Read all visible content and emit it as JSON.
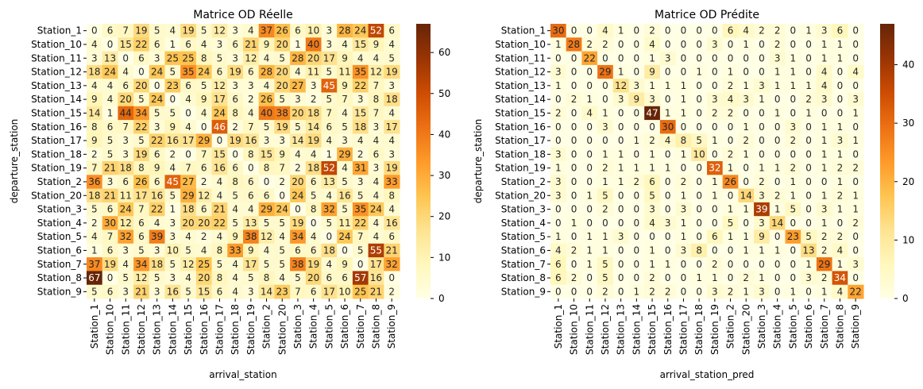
{
  "chart_data": [
    {
      "type": "heatmap",
      "title": "Matrice OD Réelle",
      "xlabel": "arrival_station",
      "ylabel": "departure_station",
      "rows": [
        "Station_1",
        "Station_10",
        "Station_11",
        "Station_12",
        "Station_13",
        "Station_14",
        "Station_15",
        "Station_16",
        "Station_17",
        "Station_18",
        "Station_19",
        "Station_2",
        "Station_20",
        "Station_3",
        "Station_4",
        "Station_5",
        "Station_6",
        "Station_7",
        "Station_8",
        "Station_9"
      ],
      "cols": [
        "Station_1",
        "Station_10",
        "Station_11",
        "Station_12",
        "Station_13",
        "Station_14",
        "Station_15",
        "Station_16",
        "Station_17",
        "Station_18",
        "Station_19",
        "Station_2",
        "Station_20",
        "Station_3",
        "Station_4",
        "Station_5",
        "Station_6",
        "Station_7",
        "Station_8",
        "Station_9"
      ],
      "values": [
        [
          0,
          6,
          7,
          19,
          5,
          4,
          19,
          5,
          12,
          3,
          4,
          37,
          26,
          6,
          10,
          3,
          28,
          24,
          52,
          6
        ],
        [
          4,
          0,
          15,
          22,
          6,
          1,
          6,
          4,
          3,
          6,
          21,
          9,
          20,
          1,
          40,
          3,
          4,
          15,
          9,
          4
        ],
        [
          3,
          13,
          0,
          6,
          3,
          25,
          25,
          8,
          5,
          3,
          12,
          4,
          5,
          28,
          20,
          17,
          9,
          4,
          4,
          5
        ],
        [
          18,
          24,
          4,
          0,
          24,
          5,
          35,
          24,
          6,
          19,
          6,
          28,
          20,
          4,
          11,
          5,
          11,
          35,
          12,
          19
        ],
        [
          4,
          4,
          6,
          20,
          0,
          23,
          6,
          5,
          12,
          3,
          3,
          4,
          20,
          27,
          3,
          45,
          9,
          22,
          7,
          3
        ],
        [
          9,
          4,
          20,
          5,
          24,
          0,
          4,
          9,
          17,
          6,
          2,
          26,
          5,
          3,
          2,
          5,
          7,
          3,
          8,
          18
        ],
        [
          14,
          1,
          44,
          34,
          5,
          5,
          0,
          4,
          24,
          8,
          4,
          40,
          38,
          20,
          18,
          7,
          4,
          15,
          7,
          4
        ],
        [
          8,
          6,
          7,
          22,
          3,
          9,
          4,
          0,
          46,
          2,
          7,
          5,
          19,
          5,
          14,
          6,
          5,
          18,
          3,
          17
        ],
        [
          9,
          5,
          3,
          5,
          22,
          16,
          17,
          29,
          0,
          19,
          16,
          3,
          3,
          14,
          19,
          4,
          3,
          4,
          4,
          4
        ],
        [
          2,
          5,
          3,
          19,
          6,
          2,
          0,
          7,
          15,
          0,
          8,
          15,
          9,
          4,
          4,
          1,
          29,
          2,
          6,
          3
        ],
        [
          7,
          21,
          18,
          8,
          9,
          4,
          7,
          6,
          16,
          6,
          0,
          8,
          7,
          2,
          18,
          52,
          4,
          31,
          3,
          19
        ],
        [
          36,
          3,
          6,
          26,
          6,
          45,
          27,
          2,
          4,
          8,
          6,
          0,
          2,
          20,
          6,
          13,
          5,
          3,
          4,
          33
        ],
        [
          18,
          21,
          11,
          17,
          16,
          5,
          29,
          12,
          4,
          5,
          6,
          6,
          0,
          24,
          5,
          4,
          16,
          5,
          4,
          8
        ],
        [
          5,
          6,
          24,
          7,
          22,
          1,
          18,
          6,
          21,
          4,
          4,
          29,
          24,
          0,
          8,
          32,
          5,
          35,
          24,
          4
        ],
        [
          2,
          30,
          12,
          6,
          4,
          3,
          20,
          20,
          22,
          5,
          13,
          5,
          5,
          19,
          0,
          5,
          11,
          22,
          4,
          16
        ],
        [
          4,
          7,
          32,
          6,
          39,
          3,
          4,
          2,
          4,
          9,
          38,
          12,
          4,
          34,
          4,
          0,
          24,
          7,
          4,
          6
        ],
        [
          1,
          6,
          3,
          5,
          3,
          10,
          5,
          4,
          8,
          33,
          9,
          4,
          5,
          6,
          6,
          18,
          0,
          5,
          55,
          21
        ],
        [
          37,
          19,
          4,
          34,
          18,
          5,
          12,
          25,
          5,
          4,
          17,
          5,
          5,
          38,
          19,
          4,
          9,
          0,
          17,
          32
        ],
        [
          67,
          0,
          5,
          12,
          5,
          3,
          4,
          20,
          8,
          4,
          5,
          8,
          4,
          5,
          20,
          6,
          6,
          57,
          16,
          0
        ],
        [
          5,
          6,
          3,
          21,
          3,
          16,
          5,
          15,
          6,
          4,
          3,
          14,
          23,
          7,
          6,
          17,
          10,
          25,
          21,
          2
        ]
      ],
      "colorbar": {
        "min": 0,
        "max": 67,
        "ticks": [
          0,
          10,
          20,
          30,
          40,
          50,
          60
        ]
      },
      "colormap": [
        "#ffffe5",
        "#fff7bc",
        "#fee391",
        "#fec44f",
        "#fe9929",
        "#ec7014",
        "#cc4c02",
        "#993404",
        "#662506"
      ]
    },
    {
      "type": "heatmap",
      "title": "Matrice OD Prédite",
      "xlabel": "arrival_station_pred",
      "ylabel": "departure_station",
      "rows": [
        "Station_1",
        "Station_10",
        "Station_11",
        "Station_12",
        "Station_13",
        "Station_14",
        "Station_15",
        "Station_16",
        "Station_17",
        "Station_18",
        "Station_19",
        "Station_2",
        "Station_20",
        "Station_3",
        "Station_4",
        "Station_5",
        "Station_6",
        "Station_7",
        "Station_8",
        "Station_9"
      ],
      "cols": [
        "Station_1",
        "Station_10",
        "Station_11",
        "Station_12",
        "Station_13",
        "Station_14",
        "Station_15",
        "Station_16",
        "Station_17",
        "Station_18",
        "Station_19",
        "Station_2",
        "Station_20",
        "Station_3",
        "Station_4",
        "Station_5",
        "Station_6",
        "Station_7",
        "Station_8",
        "Station_9"
      ],
      "values": [
        [
          30,
          0,
          0,
          4,
          1,
          0,
          2,
          0,
          0,
          0,
          0,
          6,
          4,
          2,
          2,
          0,
          1,
          3,
          6,
          0
        ],
        [
          1,
          28,
          2,
          2,
          0,
          0,
          4,
          0,
          0,
          0,
          3,
          0,
          1,
          0,
          2,
          0,
          0,
          1,
          1,
          0
        ],
        [
          0,
          0,
          22,
          0,
          0,
          0,
          1,
          3,
          0,
          0,
          0,
          0,
          0,
          0,
          3,
          1,
          0,
          1,
          1,
          0
        ],
        [
          3,
          0,
          0,
          29,
          1,
          0,
          9,
          0,
          0,
          1,
          0,
          1,
          0,
          0,
          1,
          1,
          0,
          4,
          0,
          4
        ],
        [
          1,
          0,
          0,
          0,
          12,
          3,
          1,
          1,
          1,
          0,
          0,
          2,
          1,
          3,
          1,
          1,
          1,
          4,
          0,
          0
        ],
        [
          0,
          2,
          1,
          0,
          3,
          9,
          3,
          0,
          1,
          0,
          3,
          4,
          3,
          1,
          0,
          0,
          2,
          3,
          0,
          3
        ],
        [
          2,
          0,
          4,
          1,
          0,
          0,
          47,
          1,
          1,
          0,
          2,
          2,
          0,
          0,
          1,
          0,
          1,
          0,
          0,
          1
        ],
        [
          0,
          0,
          0,
          3,
          0,
          0,
          0,
          30,
          0,
          0,
          0,
          0,
          1,
          0,
          0,
          3,
          0,
          1,
          1,
          0
        ],
        [
          0,
          0,
          0,
          0,
          0,
          1,
          2,
          4,
          8,
          5,
          1,
          0,
          2,
          0,
          0,
          2,
          0,
          1,
          3,
          1
        ],
        [
          3,
          0,
          0,
          1,
          1,
          0,
          1,
          0,
          1,
          10,
          0,
          2,
          1,
          0,
          0,
          0,
          0,
          1,
          1,
          0
        ],
        [
          1,
          0,
          0,
          2,
          1,
          1,
          1,
          1,
          0,
          0,
          32,
          1,
          0,
          1,
          1,
          2,
          0,
          1,
          2,
          2
        ],
        [
          3,
          0,
          0,
          1,
          1,
          2,
          6,
          0,
          2,
          0,
          1,
          26,
          0,
          2,
          0,
          1,
          0,
          0,
          1,
          0
        ],
        [
          3,
          0,
          1,
          5,
          0,
          0,
          5,
          0,
          1,
          0,
          1,
          0,
          14,
          3,
          2,
          1,
          0,
          1,
          2,
          1
        ],
        [
          0,
          0,
          0,
          2,
          0,
          0,
          3,
          0,
          3,
          0,
          0,
          1,
          1,
          39,
          1,
          5,
          0,
          3,
          1,
          1
        ],
        [
          0,
          1,
          0,
          0,
          0,
          0,
          4,
          3,
          1,
          0,
          0,
          5,
          0,
          3,
          14,
          0,
          0,
          1,
          0,
          2
        ],
        [
          1,
          0,
          1,
          1,
          3,
          0,
          0,
          0,
          1,
          0,
          6,
          1,
          1,
          9,
          0,
          23,
          5,
          2,
          2,
          0
        ],
        [
          4,
          2,
          1,
          1,
          0,
          0,
          1,
          0,
          3,
          8,
          0,
          0,
          1,
          1,
          1,
          0,
          13,
          2,
          4,
          0
        ],
        [
          6,
          0,
          1,
          5,
          0,
          0,
          1,
          1,
          0,
          0,
          2,
          0,
          0,
          0,
          0,
          0,
          1,
          29,
          1,
          3
        ],
        [
          6,
          2,
          0,
          5,
          0,
          0,
          2,
          0,
          0,
          1,
          1,
          0,
          2,
          1,
          0,
          0,
          3,
          2,
          34,
          0
        ],
        [
          0,
          0,
          0,
          2,
          0,
          1,
          2,
          2,
          0,
          0,
          3,
          2,
          1,
          3,
          0,
          1,
          0,
          1,
          4,
          22
        ]
      ],
      "colorbar": {
        "min": 0,
        "max": 47,
        "ticks": [
          0,
          10,
          20,
          30,
          40
        ]
      },
      "colormap": [
        "#ffffe5",
        "#fff7bc",
        "#fee391",
        "#fec44f",
        "#fe9929",
        "#ec7014",
        "#cc4c02",
        "#993404",
        "#662506"
      ]
    }
  ]
}
